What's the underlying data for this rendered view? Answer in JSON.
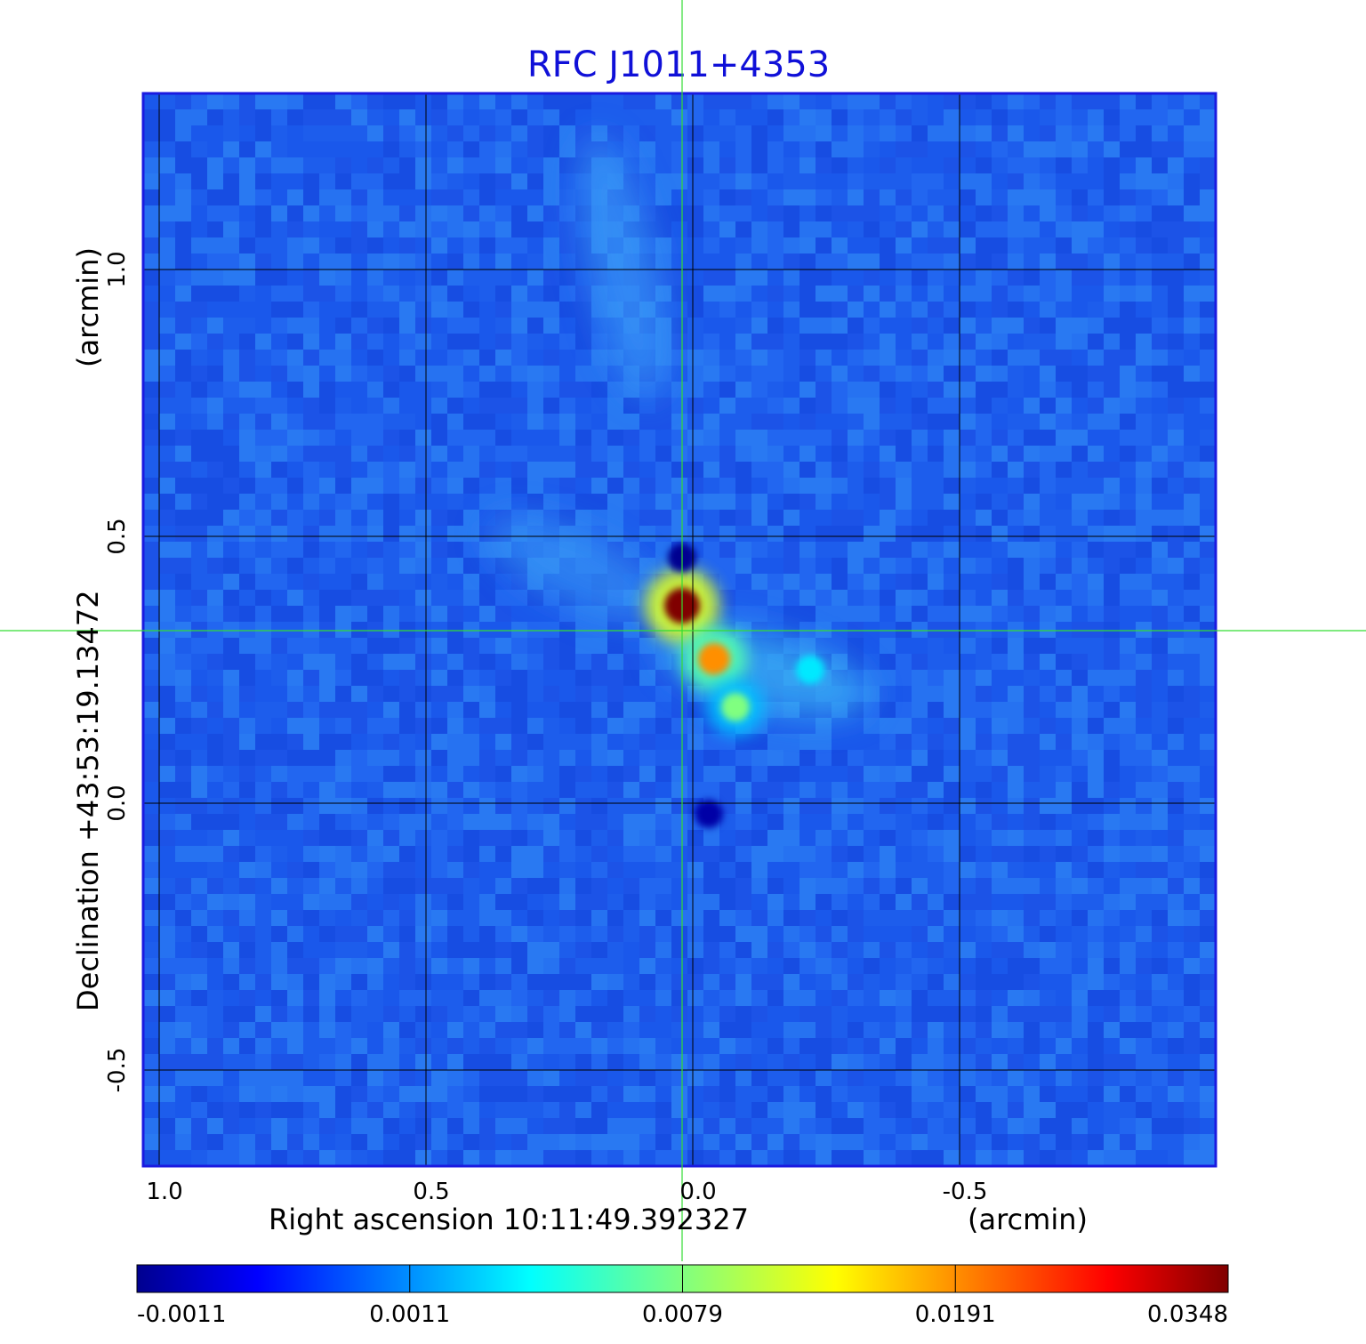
{
  "chart_data": {
    "type": "heatmap",
    "title": "RFC J1011+4353",
    "xlabel": "Right ascension  10:11:49.392327",
    "xlabel_unit": "(arcmin)",
    "ylabel": "Declination  +43:53:19.13472",
    "ylabel_unit": "(arcmin)",
    "x_ticks": [
      "1.0",
      "0.5",
      "0.0",
      "-0.5"
    ],
    "x_tick_values": [
      1.0,
      0.5,
      0.0,
      -0.5
    ],
    "y_ticks": [
      "1.0",
      "0.5",
      "0.0",
      "-0.5"
    ],
    "y_tick_values": [
      1.0,
      0.5,
      0.0,
      -0.5
    ],
    "xlim": [
      1.03,
      -0.98
    ],
    "ylim": [
      -0.68,
      1.33
    ],
    "grid": true,
    "colorscale": "jet",
    "colorbar_ticks": [
      "-0.0011",
      "0.0011",
      "0.0079",
      "0.0191",
      "0.0348"
    ],
    "colorbar_range": [
      -0.0011,
      0.0348
    ],
    "features": [
      {
        "x": 0.02,
        "y": 0.37,
        "value": 0.0348
      },
      {
        "x": -0.04,
        "y": 0.27,
        "value": 0.0191
      },
      {
        "x": -0.08,
        "y": 0.18,
        "value": 0.0079
      },
      {
        "x": -0.22,
        "y": 0.25,
        "value": 0.0035
      },
      {
        "x": 0.02,
        "y": 0.46,
        "value": -0.0011
      },
      {
        "x": -0.03,
        "y": -0.02,
        "value": -0.0009
      }
    ]
  },
  "colors": {
    "frame": "#1a1ae0",
    "grid": "#000000",
    "crosshair": "#33dd33",
    "title": "#1010d8"
  }
}
